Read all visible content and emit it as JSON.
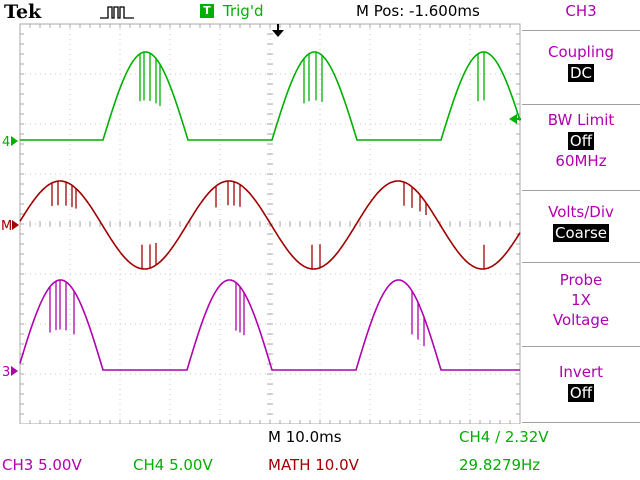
{
  "header": {
    "brand": "Tek",
    "trigger_icon_letter": "T",
    "trigger_status": "Trig'd",
    "position": "M Pos: -1.600ms"
  },
  "side_menu": {
    "channel": "CH3",
    "coupling": {
      "label": "Coupling",
      "value": "DC"
    },
    "bw_limit": {
      "label": "BW Limit",
      "value": "Off",
      "extra": "60MHz"
    },
    "volts_div": {
      "label": "Volts/Div",
      "value": "Coarse"
    },
    "probe": {
      "label": "Probe",
      "line2": "1X",
      "line3": "Voltage"
    },
    "invert": {
      "label": "Invert",
      "value": "Off"
    }
  },
  "markers": {
    "ch4": "4",
    "math": "M",
    "ch3": "3"
  },
  "readouts": {
    "timebase": "M 10.0ms",
    "trigger": "CH4 ∕ 2.32V",
    "frequency": "29.8279Hz",
    "ch3": "CH3  5.00V",
    "ch4": "CH4  5.00V",
    "math": "MATH 10.0V"
  },
  "colors": {
    "ch4": "#00b000",
    "math": "#a00000",
    "ch3": "#b000b0",
    "grid": "#a8a8a8"
  }
}
